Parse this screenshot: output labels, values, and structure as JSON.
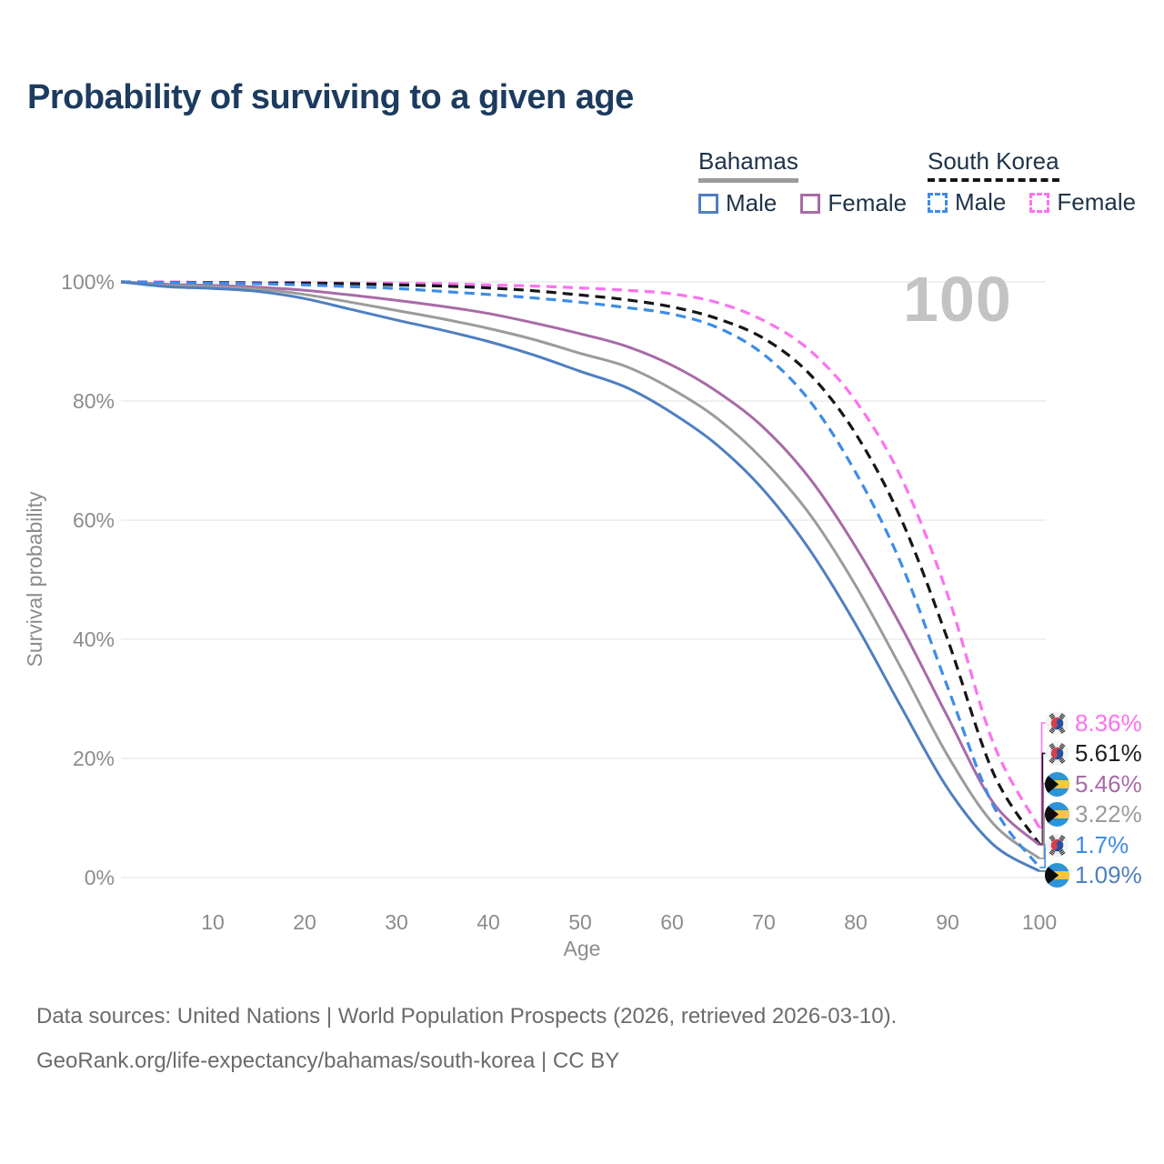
{
  "title": "Probability of surviving to a given age",
  "watermark": "100",
  "legend": {
    "groups": [
      {
        "label": "Bahamas",
        "line_style": "solid",
        "line_color": "#9b9b9b",
        "items": [
          {
            "label": "Male",
            "color": "#4e7fc0",
            "line_style": "solid"
          },
          {
            "label": "Female",
            "color": "#a76ba7",
            "line_style": "solid"
          }
        ]
      },
      {
        "label": "South Korea",
        "line_style": "dashed",
        "line_color": "#161616",
        "items": [
          {
            "label": "Male",
            "color": "#3d8ce8",
            "line_style": "dashed"
          },
          {
            "label": "Female",
            "color": "#fb72f0",
            "line_style": "dashed"
          }
        ]
      }
    ]
  },
  "chart_data": {
    "type": "line",
    "title": "Probability of surviving to a given age",
    "xlabel": "Age",
    "ylabel": "Survival probability",
    "xlim": [
      0,
      100
    ],
    "ylim": [
      0,
      100
    ],
    "grid": "horizontal",
    "legend_position": "top-right",
    "x_ticks": [
      10,
      20,
      30,
      40,
      50,
      60,
      70,
      80,
      90,
      100
    ],
    "y_ticks": [
      {
        "value": 0,
        "label": "0%"
      },
      {
        "value": 20,
        "label": "20%"
      },
      {
        "value": 40,
        "label": "40%"
      },
      {
        "value": 60,
        "label": "60%"
      },
      {
        "value": 80,
        "label": "80%"
      },
      {
        "value": 100,
        "label": "100%"
      }
    ],
    "x": [
      0,
      5,
      10,
      15,
      20,
      25,
      30,
      35,
      40,
      45,
      50,
      55,
      60,
      65,
      70,
      75,
      80,
      85,
      90,
      95,
      100
    ],
    "series": [
      {
        "name": "South Korea Female",
        "country": "South Korea",
        "sex": "female",
        "color": "#fb72f0",
        "dash": true,
        "end_value": 8.36,
        "values": [
          100,
          100,
          99.9,
          99.9,
          99.9,
          99.8,
          99.8,
          99.7,
          99.5,
          99.3,
          99.0,
          98.6,
          98.0,
          96.5,
          93.5,
          88.5,
          80.0,
          67.0,
          47.5,
          22.5,
          8.36
        ]
      },
      {
        "name": "South Korea Both sexes",
        "country": "South Korea",
        "sex": "total",
        "color": "#161616",
        "dash": true,
        "end_value": 5.61,
        "values": [
          100,
          99.9,
          99.9,
          99.8,
          99.8,
          99.7,
          99.5,
          99.3,
          99.0,
          98.5,
          97.8,
          97.0,
          95.8,
          93.8,
          90.5,
          84.5,
          74.5,
          60.0,
          40.0,
          17.5,
          5.61
        ]
      },
      {
        "name": "Bahamas Female",
        "country": "Bahamas",
        "sex": "female",
        "color": "#a76ba7",
        "dash": false,
        "end_value": 5.46,
        "values": [
          100,
          99.6,
          99.4,
          99.1,
          98.6,
          97.8,
          96.9,
          95.9,
          94.7,
          93.1,
          91.3,
          89.2,
          86.0,
          81.5,
          75.5,
          67.0,
          55.5,
          42.0,
          27.0,
          12.5,
          5.46
        ]
      },
      {
        "name": "Bahamas Both sexes",
        "country": "Bahamas",
        "sex": "total",
        "color": "#9b9b9b",
        "dash": false,
        "end_value": 3.22,
        "values": [
          100,
          99.4,
          99.2,
          98.8,
          97.9,
          96.6,
          95.2,
          93.8,
          92.2,
          90.3,
          88.0,
          85.8,
          82.0,
          77.0,
          70.0,
          61.0,
          49.0,
          35.0,
          20.5,
          9.0,
          3.22
        ]
      },
      {
        "name": "South Korea Male",
        "country": "South Korea",
        "sex": "male",
        "color": "#3d8ce8",
        "dash": true,
        "end_value": 1.7,
        "values": [
          100,
          99.9,
          99.8,
          99.7,
          99.5,
          99.2,
          98.9,
          98.4,
          97.9,
          97.3,
          96.6,
          95.7,
          94.6,
          92.3,
          87.8,
          80.0,
          68.0,
          52.5,
          32.0,
          12.0,
          1.7
        ]
      },
      {
        "name": "Bahamas Male",
        "country": "Bahamas",
        "sex": "male",
        "color": "#4e7fc0",
        "dash": false,
        "end_value": 1.09,
        "values": [
          100,
          99.2,
          98.9,
          98.4,
          97.2,
          95.4,
          93.6,
          91.9,
          90.0,
          87.7,
          85.0,
          82.3,
          78.0,
          72.5,
          65.0,
          55.0,
          42.5,
          28.5,
          15.0,
          5.5,
          1.09
        ]
      }
    ]
  },
  "end_labels": [
    {
      "series": "South Korea Female",
      "label": "8.36%",
      "color": "#fb72f0",
      "flag": "south-korea"
    },
    {
      "series": "South Korea Both sexes",
      "label": "5.61%",
      "color": "#1f1f1f",
      "flag": "south-korea"
    },
    {
      "series": "Bahamas Female",
      "label": "5.46%",
      "color": "#a76ba7",
      "flag": "bahamas"
    },
    {
      "series": "Bahamas Both sexes",
      "label": "3.22%",
      "color": "#9b9b9b",
      "flag": "bahamas"
    },
    {
      "series": "South Korea Male",
      "label": "1.7%",
      "color": "#3d8ce8",
      "flag": "south-korea"
    },
    {
      "series": "Bahamas Male",
      "label": "1.09%",
      "color": "#4e7fc0",
      "flag": "bahamas"
    }
  ],
  "footer": {
    "line1": "Data sources: United Nations | World Population Prospects (2026, retrieved 2026-03-10).",
    "line2": "GeoRank.org/life-expectancy/bahamas/south-korea | CC BY"
  }
}
